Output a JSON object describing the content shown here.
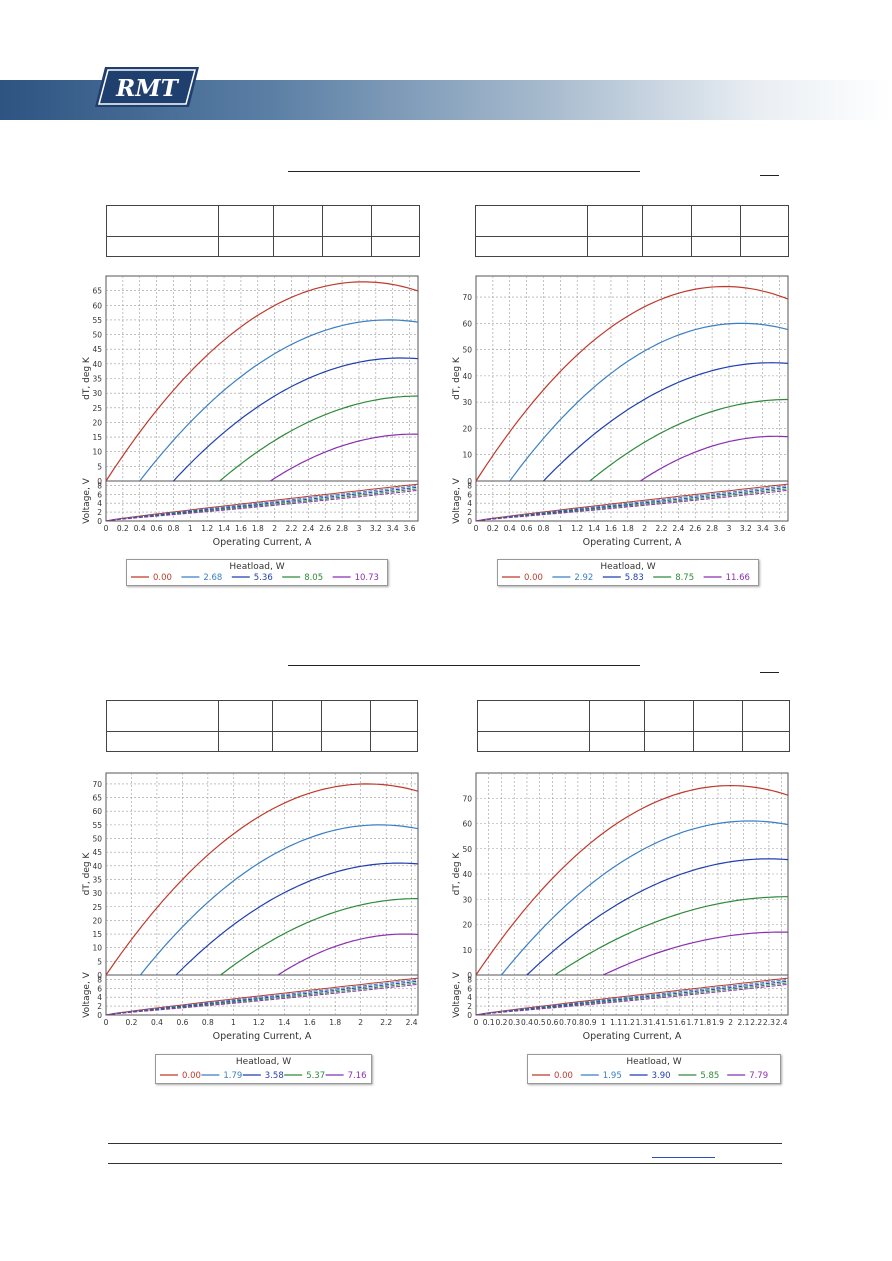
{
  "header": {
    "logo_text": "RMT"
  },
  "charts": [
    {
      "xlabel": "Operating Current, A",
      "ylabel_top": "dT, deg K",
      "ylabel_bot": "Voltage, V",
      "xticks": [
        0,
        0.2,
        0.4,
        0.6,
        0.8,
        1,
        1.2,
        1.4,
        1.6,
        1.8,
        2,
        2.2,
        2.4,
        2.6,
        2.8,
        3,
        3.2,
        3.4,
        3.6
      ],
      "xtick_labels": [
        "0",
        "0.2",
        "0.4",
        "0.6",
        "0.8",
        "1",
        "1.2",
        "1.4",
        "1.6",
        "1.8",
        "2",
        "2.2",
        "2.4",
        "2.6",
        "2.8",
        "3",
        "3.2",
        "3.4",
        "3.6"
      ],
      "xmax": 3.7,
      "dt_ticks": [
        0,
        5,
        10,
        15,
        20,
        25,
        30,
        35,
        40,
        45,
        50,
        55,
        60,
        65
      ],
      "dt_max": 70,
      "v_ticks": [
        0,
        2,
        4,
        6,
        8
      ],
      "v_max": 9,
      "legend_title": "Heatload, W",
      "legend_values": [
        "0.00",
        "2.68",
        "5.36",
        "8.05",
        "10.73"
      ],
      "vx": 3.7,
      "series": [
        {
          "x0": 0.0,
          "xm": 3.05,
          "dtmax": 68
        },
        {
          "x0": 0.4,
          "xm": 3.35,
          "dtmax": 55
        },
        {
          "x0": 0.8,
          "xm": 3.5,
          "dtmax": 42
        },
        {
          "x0": 1.35,
          "xm": 3.7,
          "dtmax": 29
        },
        {
          "x0": 1.95,
          "xm": 3.65,
          "dtmax": 16
        }
      ]
    },
    {
      "xlabel": "Operating Current, A",
      "ylabel_top": "dT, deg K",
      "ylabel_bot": "Voltage, V",
      "xticks": [
        0,
        0.2,
        0.4,
        0.6,
        0.8,
        1,
        1.2,
        1.4,
        1.6,
        1.8,
        2,
        2.2,
        2.4,
        2.6,
        2.8,
        3,
        3.2,
        3.4,
        3.6
      ],
      "xtick_labels": [
        "0",
        "0.2",
        "0.4",
        "0.6",
        "0.8",
        "1",
        "1.2",
        "1.4",
        "1.6",
        "1.8",
        "2",
        "2.2",
        "2.4",
        "2.6",
        "2.8",
        "3",
        "3.2",
        "3.4",
        "3.6"
      ],
      "xmax": 3.7,
      "dt_ticks": [
        0,
        10,
        20,
        30,
        40,
        50,
        60,
        70
      ],
      "dt_max": 78,
      "v_ticks": [
        0,
        2,
        4,
        6,
        8
      ],
      "v_max": 9,
      "legend_title": "Heatload, W",
      "legend_values": [
        "0.00",
        "2.92",
        "5.83",
        "8.75",
        "11.66"
      ],
      "vx": 3.7,
      "series": [
        {
          "x0": 0.0,
          "xm": 2.95,
          "dtmax": 74
        },
        {
          "x0": 0.4,
          "xm": 3.15,
          "dtmax": 60
        },
        {
          "x0": 0.8,
          "xm": 3.5,
          "dtmax": 45
        },
        {
          "x0": 1.35,
          "xm": 3.7,
          "dtmax": 31
        },
        {
          "x0": 1.95,
          "xm": 3.55,
          "dtmax": 17
        }
      ]
    },
    {
      "xlabel": "Operating Current, A",
      "ylabel_top": "dT, deg K",
      "ylabel_bot": "Voltage, V",
      "xticks": [
        0,
        0.2,
        0.4,
        0.6,
        0.8,
        1,
        1.2,
        1.4,
        1.6,
        1.8,
        2,
        2.2,
        2.4
      ],
      "xtick_labels": [
        "0",
        "0.2",
        "0.4",
        "0.6",
        "0.8",
        "1",
        "1.2",
        "1.4",
        "1.6",
        "1.8",
        "2",
        "2.2",
        "2.4"
      ],
      "xmax": 2.45,
      "dt_ticks": [
        0,
        5,
        10,
        15,
        20,
        25,
        30,
        35,
        40,
        45,
        50,
        55,
        60,
        65,
        70
      ],
      "dt_max": 74,
      "v_ticks": [
        0,
        2,
        4,
        6,
        8
      ],
      "v_max": 9,
      "legend_title": "Heatload, W",
      "legend_values": [
        "0.00",
        "1.79",
        "3.58",
        "5.37",
        "7.16"
      ],
      "vx": 2.45,
      "series": [
        {
          "x0": 0.0,
          "xm": 2.05,
          "dtmax": 70
        },
        {
          "x0": 0.27,
          "xm": 2.15,
          "dtmax": 55
        },
        {
          "x0": 0.55,
          "xm": 2.3,
          "dtmax": 41
        },
        {
          "x0": 0.9,
          "xm": 2.45,
          "dtmax": 28
        },
        {
          "x0": 1.35,
          "xm": 2.35,
          "dtmax": 15
        }
      ]
    },
    {
      "xlabel": "Operating Current, A",
      "ylabel_top": "dT, deg K",
      "ylabel_bot": "Voltage, V",
      "xticks": [
        0,
        0.1,
        0.2,
        0.3,
        0.4,
        0.5,
        0.6,
        0.7,
        0.8,
        0.9,
        1,
        1.1,
        1.2,
        1.3,
        1.4,
        1.5,
        1.6,
        1.7,
        1.8,
        1.9,
        2,
        2.1,
        2.2,
        2.3,
        2.4
      ],
      "xtick_labels": [
        "0",
        "0.1",
        "0.2",
        "0.3",
        "0.4",
        "0.5",
        "0.6",
        "0.7",
        "0.8",
        "0.9",
        "1",
        "1.1",
        "1.2",
        "1.3",
        "1.4",
        "1.5",
        "1.6",
        "1.7",
        "1.8",
        "1.9",
        "2",
        "2.1",
        "2.2",
        "2.3",
        "2.4"
      ],
      "xmax": 2.45,
      "dt_ticks": [
        0,
        10,
        20,
        30,
        40,
        50,
        60,
        70
      ],
      "dt_max": 80,
      "v_ticks": [
        0,
        2,
        4,
        6,
        8
      ],
      "v_max": 9,
      "legend_title": "Heatload, W",
      "legend_values": [
        "0.00",
        "1.95",
        "3.90",
        "5.85",
        "7.79"
      ],
      "vx": 2.45,
      "series": [
        {
          "x0": 0.0,
          "xm": 2.0,
          "dtmax": 75
        },
        {
          "x0": 0.2,
          "xm": 2.15,
          "dtmax": 61
        },
        {
          "x0": 0.4,
          "xm": 2.3,
          "dtmax": 46
        },
        {
          "x0": 0.62,
          "xm": 2.45,
          "dtmax": 31
        },
        {
          "x0": 1.0,
          "xm": 2.4,
          "dtmax": 17
        }
      ]
    }
  ],
  "colors": {
    "series": [
      "#c0392b",
      "#3a7fc4",
      "#1f3fb0",
      "#2e8b3a",
      "#8a2fb0"
    ]
  }
}
